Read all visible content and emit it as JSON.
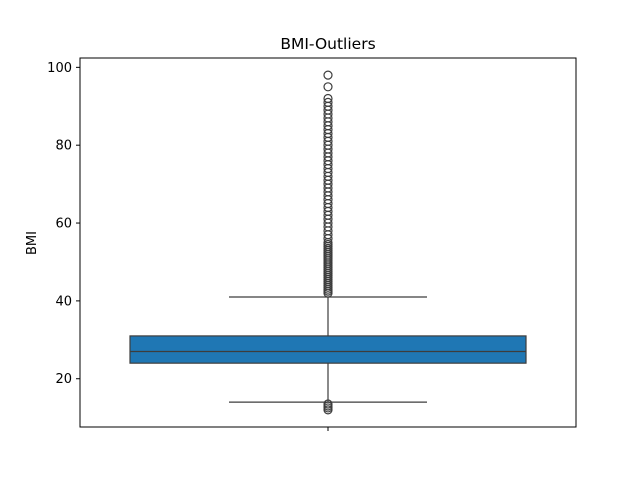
{
  "chart_data": {
    "type": "boxplot",
    "title": "BMI-Outliers",
    "xlabel": "",
    "ylabel": "BMI",
    "ylim": [
      7.6,
      102.4
    ],
    "yticks": [
      20,
      40,
      60,
      80,
      100
    ],
    "grid": false,
    "legend": "none",
    "box_color": "#1f77b4",
    "line_color": "#3d3d3d",
    "box": {
      "whisker_low": 14,
      "q1": 24,
      "median": 27,
      "q3": 31,
      "whisker_high": 41
    },
    "outliers": [
      12,
      12.5,
      13,
      13.5,
      42,
      42.5,
      43,
      43.5,
      44,
      44.5,
      45,
      45.5,
      46,
      46.5,
      47,
      47.5,
      48,
      48.5,
      49,
      49.5,
      50,
      50.5,
      51,
      51.5,
      52,
      52.5,
      53,
      53.5,
      54,
      54.5,
      55,
      56,
      57,
      58,
      59,
      60,
      61,
      62,
      63,
      64,
      65,
      66,
      67,
      68,
      69,
      70,
      71,
      72,
      73,
      74,
      75,
      76,
      77,
      78,
      79,
      80,
      81,
      82,
      83,
      84,
      85,
      86,
      87,
      88,
      89,
      90,
      91,
      92,
      95,
      98
    ]
  }
}
